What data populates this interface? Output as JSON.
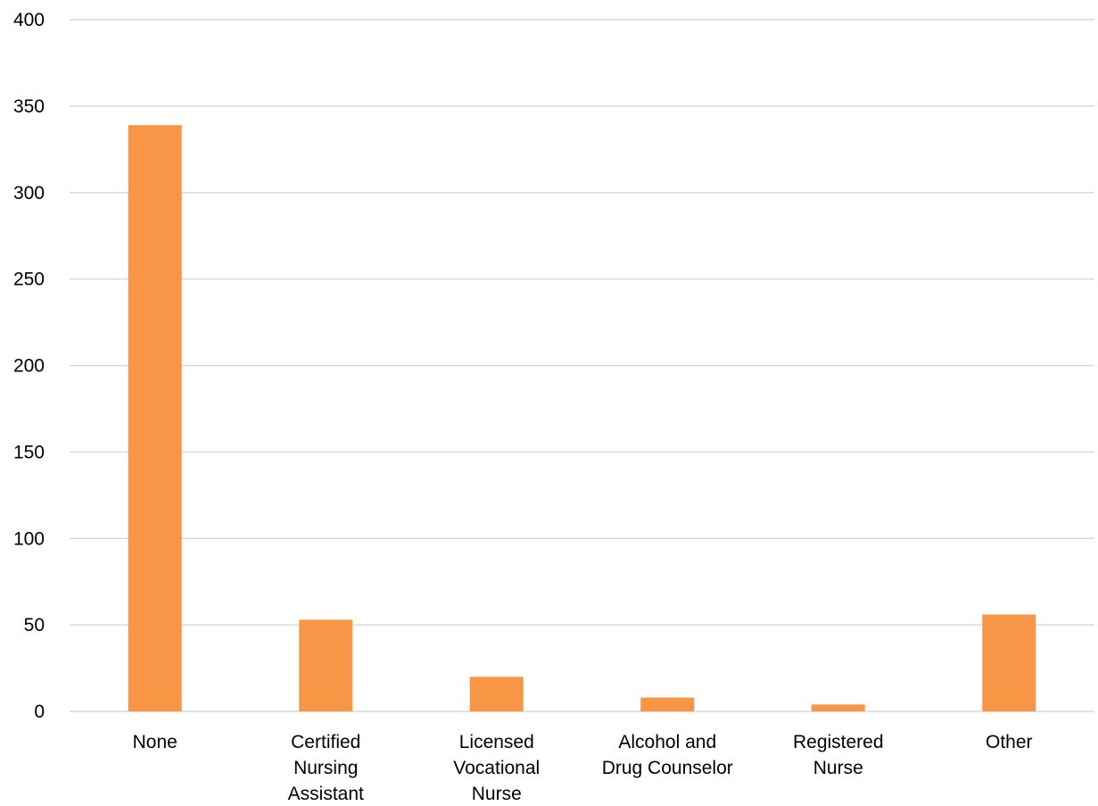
{
  "chart_data": {
    "type": "bar",
    "categories": [
      [
        "None"
      ],
      [
        "Certified",
        "Nursing",
        "Assistant"
      ],
      [
        "Licensed",
        "Vocational",
        "Nurse"
      ],
      [
        "Alcohol and",
        "Drug Counselor"
      ],
      [
        "Registered",
        "Nurse"
      ],
      [
        "Other"
      ]
    ],
    "values": [
      339,
      53,
      20,
      8,
      4,
      56
    ],
    "ylim": [
      0,
      400
    ],
    "yticks": [
      "0",
      "50",
      "100",
      "150",
      "200",
      "250",
      "300",
      "350",
      "400"
    ],
    "grid": true,
    "bar_color": "#f79646",
    "title": "",
    "xlabel": "",
    "ylabel": ""
  }
}
